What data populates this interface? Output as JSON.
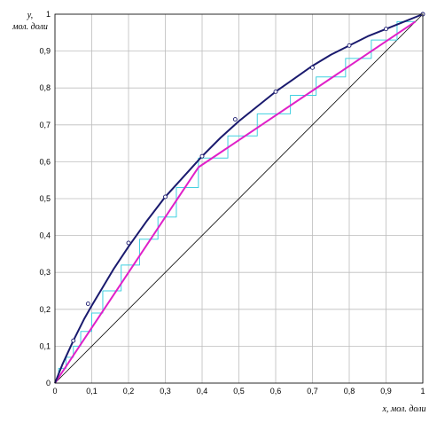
{
  "chart_data": {
    "type": "line",
    "xlabel": "x, мол. доли",
    "ylabel_line1": "y,",
    "ylabel_line2": "мол. доли",
    "xlim": [
      0,
      1
    ],
    "ylim": [
      0,
      1
    ],
    "grid": true,
    "x_ticks": [
      "0",
      "0,1",
      "0,2",
      "0,3",
      "0,4",
      "0,5",
      "0,6",
      "0,7",
      "0,8",
      "0,9",
      "1"
    ],
    "y_ticks": [
      "0",
      "0,1",
      "0,2",
      "0,3",
      "0,4",
      "0,5",
      "0,6",
      "0,7",
      "0,8",
      "0,9",
      "1"
    ],
    "colors": {
      "equilibrium": "#1a1a6e",
      "operating": "#e020c8",
      "steps": "#40d0e0",
      "diagonal": "#000000",
      "grid": "#bdbdbd"
    },
    "series": [
      {
        "role": "equilibrium",
        "x": [
          0,
          0.02,
          0.05,
          0.08,
          0.1,
          0.13,
          0.16,
          0.2,
          0.25,
          0.3,
          0.35,
          0.4,
          0.45,
          0.5,
          0.55,
          0.6,
          0.65,
          0.7,
          0.75,
          0.8,
          0.85,
          0.9,
          0.95,
          1.0
        ],
        "y": [
          0,
          0.05,
          0.115,
          0.175,
          0.21,
          0.26,
          0.31,
          0.37,
          0.44,
          0.505,
          0.56,
          0.615,
          0.665,
          0.71,
          0.75,
          0.79,
          0.825,
          0.86,
          0.89,
          0.915,
          0.94,
          0.96,
          0.98,
          1.0
        ]
      },
      {
        "role": "experimental-points",
        "x": [
          0.05,
          0.09,
          0.2,
          0.3,
          0.4,
          0.49,
          0.6,
          0.7,
          0.8,
          0.9,
          1.0
        ],
        "y": [
          0.115,
          0.215,
          0.38,
          0.505,
          0.615,
          0.715,
          0.79,
          0.855,
          0.915,
          0.96,
          1.0
        ]
      },
      {
        "role": "operating-stripping",
        "x": [
          0,
          0.39
        ],
        "y": [
          0,
          0.585
        ]
      },
      {
        "role": "operating-rectifying",
        "x": [
          0.39,
          0.98
        ],
        "y": [
          0.585,
          0.98
        ]
      },
      {
        "role": "diagonal",
        "x": [
          0,
          1
        ],
        "y": [
          0,
          1
        ]
      },
      {
        "role": "steps",
        "x": [
          0.98,
          0.93,
          0.93,
          0.86,
          0.86,
          0.79,
          0.79,
          0.71,
          0.71,
          0.64,
          0.64,
          0.55,
          0.55,
          0.47,
          0.47,
          0.39,
          0.39,
          0.33,
          0.33,
          0.28,
          0.28,
          0.23,
          0.23,
          0.18,
          0.18,
          0.13,
          0.13,
          0.1,
          0.1,
          0.07,
          0.07,
          0.05,
          0.05,
          0.03,
          0.03,
          0.01,
          0.01
        ],
        "y": [
          0.98,
          0.98,
          0.93,
          0.93,
          0.88,
          0.88,
          0.83,
          0.83,
          0.78,
          0.78,
          0.73,
          0.73,
          0.67,
          0.67,
          0.61,
          0.61,
          0.53,
          0.53,
          0.45,
          0.45,
          0.39,
          0.39,
          0.32,
          0.32,
          0.25,
          0.25,
          0.19,
          0.19,
          0.14,
          0.14,
          0.1,
          0.1,
          0.07,
          0.07,
          0.04,
          0.04,
          0.02
        ]
      }
    ]
  }
}
